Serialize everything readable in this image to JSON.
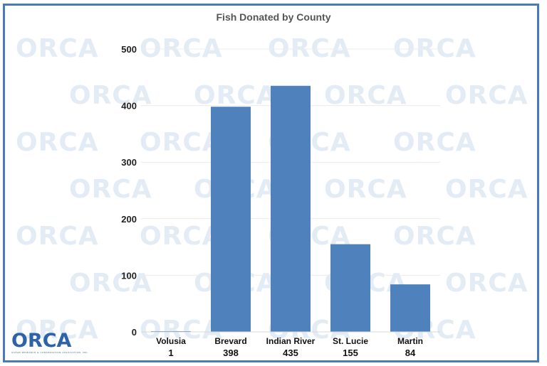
{
  "watermark": {
    "text": "ORCA"
  },
  "logo": {
    "text": "ORCA",
    "tagline": "OCEAN RESEARCH & CONSERVATION ASSOCIATION, INC."
  },
  "colors": {
    "bar": "#4f81bd",
    "frame": "#4a7ab8",
    "watermark": "#e3ebf5",
    "logo": "#2f63a8"
  },
  "chart_data": {
    "type": "bar",
    "title": "Fish Donated by County",
    "categories": [
      "Volusia",
      "Brevard",
      "Indian River",
      "St. Lucie",
      "Martin"
    ],
    "values": [
      1,
      398,
      435,
      155,
      84
    ],
    "value_labels": [
      "1",
      "398",
      "435",
      "155",
      "84"
    ],
    "ylim": [
      0,
      500
    ],
    "yticks": [
      0,
      100,
      200,
      300,
      400,
      500
    ],
    "grid": true,
    "legend": "none",
    "xlabel": "",
    "ylabel": ""
  }
}
